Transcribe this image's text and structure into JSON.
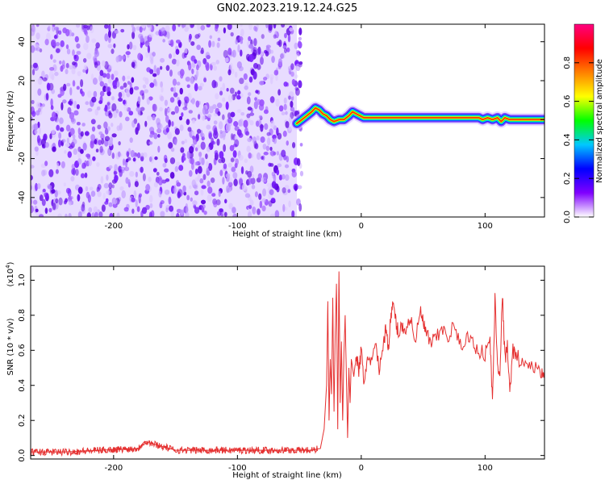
{
  "figure": {
    "title": "GN02.2023.219.12.24.G25"
  },
  "chart_data": [
    {
      "type": "heatmap",
      "name": "spectrogram",
      "xlabel": "Height of straight line (km)",
      "ylabel": "Frequency (Hz)",
      "xlim": [
        -267,
        148
      ],
      "ylim": [
        -50,
        49
      ],
      "x_ticks": [
        -200,
        -100,
        0,
        100
      ],
      "x_tick_labels": [
        "-200",
        "-100",
        "0",
        "100"
      ],
      "y_ticks": [
        -40,
        -20,
        0,
        20,
        40
      ],
      "y_tick_labels": [
        "-40",
        "-20",
        "0",
        "20",
        "40"
      ],
      "noise_region_x": [
        -267,
        -52
      ],
      "signal_trace": {
        "x": [
          -52,
          -48,
          -44,
          -40,
          -37,
          -34,
          -31,
          -28,
          -25,
          -22,
          -18,
          -14,
          -10,
          -7,
          -4,
          -1,
          2,
          10,
          40,
          70,
          95,
          98,
          102,
          106,
          110,
          113,
          116,
          120,
          130,
          148
        ],
        "y": [
          -2,
          0,
          2,
          4,
          6,
          5,
          3,
          2,
          0,
          -1,
          0,
          0,
          2,
          4,
          3,
          2,
          1,
          1,
          1,
          1,
          1,
          0,
          1,
          0,
          1,
          -1,
          1,
          0,
          0,
          0
        ]
      },
      "colorbar": {
        "label": "Normalized spectral amplitude",
        "range": [
          0,
          1
        ],
        "ticks": [
          0,
          0.2,
          0.4,
          0.6,
          0.8
        ],
        "tick_labels": [
          "0.0",
          "0.2",
          "0.4",
          "0.6",
          "0.8"
        ],
        "colormap": [
          "#ffffff",
          "#8000ff",
          "#0000ff",
          "#00c8ff",
          "#00ff00",
          "#ffff00",
          "#ff8000",
          "#ff0000",
          "#ff0080"
        ]
      }
    },
    {
      "type": "line",
      "name": "snr",
      "xlabel": "Height of straight line (km)",
      "ylabel": "SNR (10 * v/v)",
      "y_scale_label": "(x10",
      "y_scale_exp": "4",
      "y_scale_close": ")",
      "xlim": [
        -267,
        148
      ],
      "ylim": [
        -0.02,
        1.08
      ],
      "x_ticks": [
        -200,
        -100,
        0,
        100
      ],
      "x_tick_labels": [
        "-200",
        "-100",
        "0",
        "100"
      ],
      "y_ticks": [
        0,
        0.2,
        0.4,
        0.6,
        0.8,
        1.0
      ],
      "y_tick_labels": [
        "0.0",
        "0.2",
        "0.4",
        "0.6",
        "0.8",
        "1.0"
      ],
      "color": "#e53030",
      "x": [
        -267,
        -240,
        -210,
        -180,
        -175,
        -150,
        -120,
        -90,
        -60,
        -40,
        -33,
        -30,
        -28,
        -27,
        -26,
        -25,
        -24,
        -23,
        -22,
        -21,
        -20,
        -19,
        -18,
        -17,
        -16,
        -15,
        -14,
        -13,
        -12,
        -11,
        -10,
        -9,
        -8,
        -6,
        -4,
        -2,
        0,
        2,
        5,
        8,
        12,
        15,
        18,
        20,
        22,
        24,
        26,
        28,
        30,
        33,
        36,
        40,
        44,
        48,
        50,
        52,
        56,
        60,
        65,
        70,
        75,
        80,
        85,
        90,
        95,
        100,
        104,
        106,
        108,
        110,
        112,
        114,
        116,
        118,
        120,
        122,
        125,
        130,
        135,
        140,
        145,
        148
      ],
      "y": [
        0.02,
        0.02,
        0.03,
        0.04,
        0.08,
        0.03,
        0.03,
        0.03,
        0.03,
        0.03,
        0.04,
        0.15,
        0.4,
        0.88,
        0.2,
        0.55,
        0.35,
        0.9,
        0.25,
        0.7,
        0.98,
        0.15,
        1.05,
        0.3,
        0.65,
        0.2,
        0.58,
        0.8,
        0.45,
        0.1,
        0.5,
        0.3,
        0.55,
        0.45,
        0.58,
        0.48,
        0.6,
        0.42,
        0.55,
        0.52,
        0.62,
        0.48,
        0.66,
        0.72,
        0.62,
        0.8,
        0.86,
        0.76,
        0.7,
        0.74,
        0.72,
        0.78,
        0.66,
        0.82,
        0.76,
        0.7,
        0.64,
        0.66,
        0.72,
        0.68,
        0.74,
        0.62,
        0.68,
        0.64,
        0.6,
        0.58,
        0.66,
        0.3,
        0.9,
        0.52,
        0.48,
        0.92,
        0.55,
        0.62,
        0.34,
        0.6,
        0.58,
        0.52,
        0.52,
        0.5,
        0.46,
        0.48
      ]
    }
  ]
}
